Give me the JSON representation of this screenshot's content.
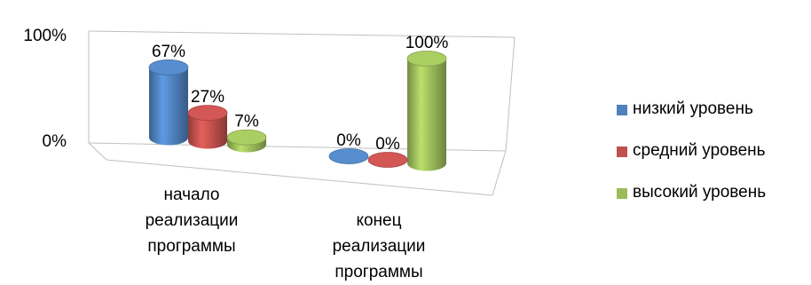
{
  "chart_data": {
    "type": "bar",
    "title": "",
    "xlabel": "",
    "ylabel": "",
    "ylim": [
      0,
      100
    ],
    "y_ticks": [
      "0%",
      "100%"
    ],
    "categories": [
      "начало реализации программы",
      "конец реализации программы"
    ],
    "series": [
      {
        "name": "низкий уровень",
        "color": "#4f81bd",
        "values": [
          67,
          0
        ],
        "labels": [
          "67%",
          "0%"
        ]
      },
      {
        "name": "средний уровень",
        "color": "#c0504d",
        "values": [
          27,
          0
        ],
        "labels": [
          "27%",
          "0%"
        ]
      },
      {
        "name": "высокий уровень",
        "color": "#9bbb59",
        "values": [
          7,
          100
        ],
        "labels": [
          "7%",
          "100%"
        ]
      }
    ],
    "legend_position": "right",
    "grid": false,
    "style": "3d-cylinder"
  }
}
